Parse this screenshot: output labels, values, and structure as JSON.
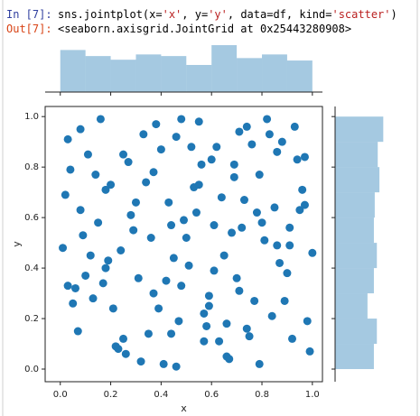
{
  "cell": {
    "in_prompt": "In [7]:",
    "code": [
      "sns.jointplot(x=",
      "'x'",
      ", y=",
      "'y'",
      ", data=df, kind=",
      "'scatter'",
      ")"
    ],
    "out_prompt": "Out[7]:",
    "output": "<seaborn.axisgrid.JointGrid at 0x25443280908>"
  },
  "chart_data": [
    {
      "type": "histogram",
      "orientation": "vertical",
      "color": "#1f77b4",
      "bins": [
        0,
        0.1,
        0.2,
        0.3,
        0.4,
        0.5,
        0.6,
        0.7,
        0.8,
        0.9,
        1.0
      ],
      "counts": [
        104,
        89,
        80,
        93,
        89,
        67,
        116,
        84,
        93,
        78
      ],
      "xlim": [
        -0.06,
        1.04
      ],
      "ylim": [
        0,
        125
      ],
      "xticks": [
        0,
        0.2,
        0.4,
        0.6,
        0.8,
        1.0
      ]
    },
    {
      "type": "scatter",
      "color": "#1f77b4",
      "xlabel": "x",
      "ylabel": "y",
      "xlim": [
        -0.06,
        1.04
      ],
      "ylim": [
        -0.05,
        1.04
      ],
      "xticks": [
        {
          "value": 0,
          "label": "0.0"
        },
        {
          "value": 0.2,
          "label": "0.2"
        },
        {
          "value": 0.4,
          "label": "0.4"
        },
        {
          "value": 0.6,
          "label": "0.6"
        },
        {
          "value": 0.8,
          "label": "0.8"
        },
        {
          "value": 1.0,
          "label": "1.0"
        }
      ],
      "yticks": [
        {
          "value": 0,
          "label": "0.0"
        },
        {
          "value": 0.2,
          "label": "0.2"
        },
        {
          "value": 0.4,
          "label": "0.4"
        },
        {
          "value": 0.6,
          "label": "0.6"
        },
        {
          "value": 0.8,
          "label": "0.8"
        },
        {
          "value": 1.0,
          "label": "1.0"
        }
      ],
      "x": [
        0.03,
        0.12,
        0.25,
        0.37,
        0.48,
        0.55,
        0.66,
        0.78,
        0.89,
        0.97,
        0.07,
        0.18,
        0.29,
        0.41,
        0.52,
        0.61,
        0.73,
        0.84,
        0.93,
        0.01,
        0.15,
        0.22,
        0.33,
        0.45,
        0.58,
        0.69,
        0.71,
        0.82,
        0.95,
        0.05,
        0.1,
        0.27,
        0.39,
        0.43,
        0.5,
        0.63,
        0.76,
        0.87,
        0.99,
        0.2,
        0.32,
        0.44,
        0.56,
        0.08,
        0.91,
        0.64,
        0.17,
        0.75,
        0.28,
        0.86,
        0.02,
        0.13,
        0.24,
        0.35,
        0.46,
        0.57,
        0.68,
        0.79,
        0.9,
        0.98,
        0.11,
        0.26,
        0.31,
        0.49,
        0.53,
        0.62,
        0.74,
        0.81,
        0.94,
        0.06,
        0.19,
        0.38,
        0.47,
        0.59,
        0.67,
        0.72,
        0.85,
        0.96,
        0.04,
        0.23,
        0.34,
        0.42,
        0.54,
        0.6,
        0.65,
        0.77,
        0.83,
        0.92,
        0.09,
        0.16,
        0.21,
        0.3,
        0.4,
        0.51,
        0.57,
        0.7,
        0.8,
        0.88,
        1.0,
        0.14,
        0.36,
        0.46,
        0.55,
        0.66,
        0.74,
        0.86,
        0.97,
        0.03,
        0.25,
        0.61,
        0.08,
        0.18,
        0.37,
        0.48,
        0.59,
        0.69,
        0.79,
        0.91,
        0.44,
        0.71
      ],
      "y": [
        0.91,
        0.45,
        0.12,
        0.78,
        0.33,
        0.98,
        0.05,
        0.62,
        0.27,
        0.84,
        0.15,
        0.71,
        0.55,
        0.02,
        0.88,
        0.39,
        0.67,
        0.21,
        0.96,
        0.48,
        0.58,
        0.09,
        0.93,
        0.44,
        0.17,
        0.76,
        0.31,
        0.99,
        0.63,
        0.26,
        0.37,
        0.82,
        0.24,
        0.66,
        0.52,
        0.11,
        0.89,
        0.42,
        0.07,
        0.73,
        0.03,
        0.57,
        0.81,
        0.95,
        0.49,
        0.68,
        0.34,
        0.13,
        0.61,
        0.86,
        0.69,
        0.28,
        0.47,
        0.14,
        0.92,
        0.22,
        0.54,
        0.77,
        0.38,
        0.19,
        0.85,
        0.06,
        0.36,
        0.59,
        0.72,
        0.88,
        0.16,
        0.51,
        0.83,
        0.32,
        0.43,
        0.97,
        0.19,
        0.29,
        0.04,
        0.56,
        0.64,
        0.71,
        0.79,
        0.08,
        0.74,
        0.35,
        0.62,
        0.83,
        0.45,
        0.27,
        0.93,
        0.12,
        0.53,
        0.99,
        0.24,
        0.66,
        0.87,
        0.41,
        0.11,
        0.36,
        0.58,
        0.9,
        0.46,
        0.77,
        0.52,
        0.01,
        0.73,
        0.18,
        0.96,
        0.49,
        0.65,
        0.33,
        0.85,
        0.57,
        0.63,
        0.4,
        0.3,
        0.99,
        0.25,
        0.81,
        0.02,
        0.56,
        0.14,
        0.94
      ]
    },
    {
      "type": "histogram",
      "orientation": "horizontal",
      "color": "#1f77b4",
      "bins": [
        0,
        0.1,
        0.2,
        0.3,
        0.4,
        0.5,
        0.6,
        0.7,
        0.8,
        0.9,
        1.0
      ],
      "counts": [
        91,
        98,
        76,
        91,
        98,
        91,
        93,
        104,
        100,
        113
      ],
      "ylim": [
        -0.05,
        1.04
      ],
      "xlim": [
        0,
        125
      ],
      "yticks": [
        0,
        0.2,
        0.4,
        0.6,
        0.8,
        1.0
      ]
    }
  ]
}
